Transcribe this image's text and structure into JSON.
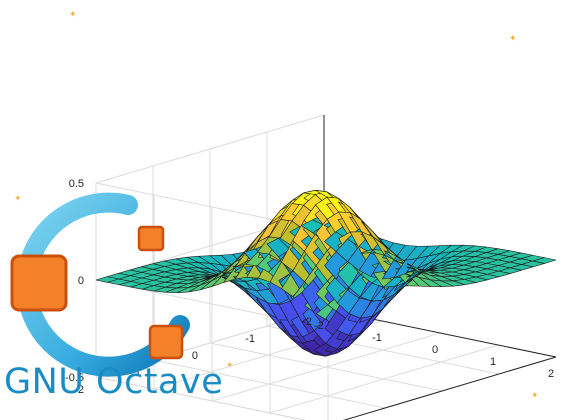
{
  "brand": {
    "text": "GNU Octave",
    "text_color": "#1a8cc4",
    "ring_color_light": "#4fc3e8",
    "ring_color_dark": "#0d7bbd",
    "square_fill": "#f5802a",
    "square_stroke": "#cc4f0a",
    "star_color": "#f4b042"
  },
  "chart_data": {
    "type": "surface",
    "title": "",
    "function": "peaks",
    "grid": true,
    "colormap": "parula",
    "x_range": [
      -2,
      2
    ],
    "y_range": [
      -2,
      2
    ],
    "zlim": [
      -0.5,
      0.5
    ],
    "x_ticks": [
      "-2",
      "-1",
      "0",
      "1",
      "2"
    ],
    "y_ticks": [
      "-2",
      "-1",
      "0",
      "1",
      "2"
    ],
    "z_ticks": [
      "-0.5",
      "0",
      "0.5"
    ],
    "mesh_count": 21
  }
}
